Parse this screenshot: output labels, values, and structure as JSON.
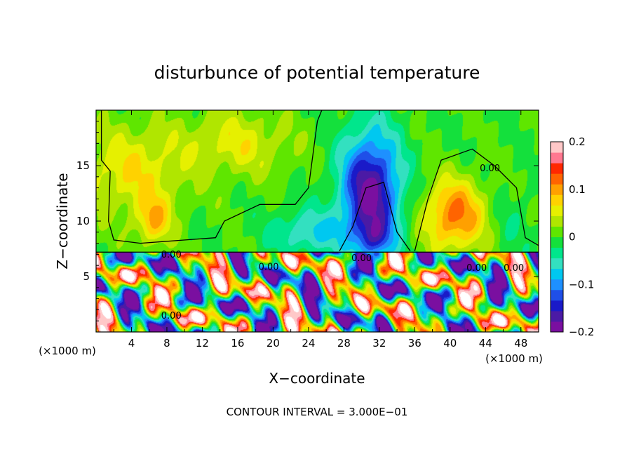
{
  "chart_data": {
    "type": "heatmap",
    "title": "disturbunce of potential temperature",
    "xlabel": "X−coordinate",
    "ylabel": "Z−coordinate",
    "x_unit_left": "(×1000 m)",
    "x_unit_right": "(×1000 m)",
    "footer": "CONTOUR INTERVAL = 3.000E−01",
    "xlim": [
      0,
      50
    ],
    "ylim": [
      0,
      20
    ],
    "x_ticks": [
      4,
      8,
      12,
      16,
      20,
      24,
      28,
      32,
      36,
      40,
      44,
      48
    ],
    "y_ticks": [
      5,
      10,
      15
    ],
    "colorbar": {
      "range": [
        -0.2,
        0.2
      ],
      "ticks": [
        0.2,
        0.1,
        0,
        -0.1,
        -0.2
      ],
      "tick_labels": [
        "0.2",
        "0.1",
        "0",
        "−0.1",
        "−0.2"
      ],
      "colors": [
        "#7a0fa0",
        "#4b1aa5",
        "#1a1ac8",
        "#1f4fe8",
        "#1e90ff",
        "#00c8f0",
        "#33e0c0",
        "#00e68c",
        "#14e03c",
        "#5fe600",
        "#b0e600",
        "#e6f000",
        "#ffd200",
        "#ffa000",
        "#ff6400",
        "#ff2800",
        "#ff7890",
        "#ffc8c8"
      ]
    },
    "contour_labels": [
      {
        "text": "0.00",
        "x": 44.5,
        "y": 14.5
      },
      {
        "text": "0.00",
        "x": 8.5,
        "y": 6.7
      },
      {
        "text": "0.00",
        "x": 19.5,
        "y": 5.6
      },
      {
        "text": "0.00",
        "x": 30.0,
        "y": 6.4
      },
      {
        "text": "0.00",
        "x": 8.5,
        "y": 1.2
      },
      {
        "text": "0.00",
        "x": 43.0,
        "y": 5.5
      },
      {
        "text": "0.00",
        "x": 47.2,
        "y": 5.5
      }
    ],
    "blobs": [
      {
        "x": 4.0,
        "z": 14.5,
        "sx": 6.0,
        "sz": 4.0,
        "v": 0.065
      },
      {
        "x": 16.0,
        "z": 17.0,
        "sx": 6.0,
        "sz": 3.0,
        "v": 0.055
      },
      {
        "x": 6.5,
        "z": 10.0,
        "sx": 2.0,
        "sz": 2.2,
        "v": 0.08
      },
      {
        "x": 40.5,
        "z": 10.5,
        "sx": 3.5,
        "sz": 3.2,
        "v": 0.12
      },
      {
        "x": 31.0,
        "z": 12.5,
        "sx": 3.3,
        "sz": 5.5,
        "v": -0.19
      },
      {
        "x": 31.5,
        "z": 8.5,
        "sx": 2.0,
        "sz": 1.5,
        "v": -0.06
      },
      {
        "x": 24.0,
        "z": 9.0,
        "sx": 4.0,
        "sz": 2.0,
        "v": -0.07
      },
      {
        "x": 47.0,
        "z": 10.0,
        "sx": 2.5,
        "sz": 3.0,
        "v": -0.02
      }
    ],
    "lower_layer": {
      "z_top": 7.2,
      "amplitude": 0.28
    }
  }
}
